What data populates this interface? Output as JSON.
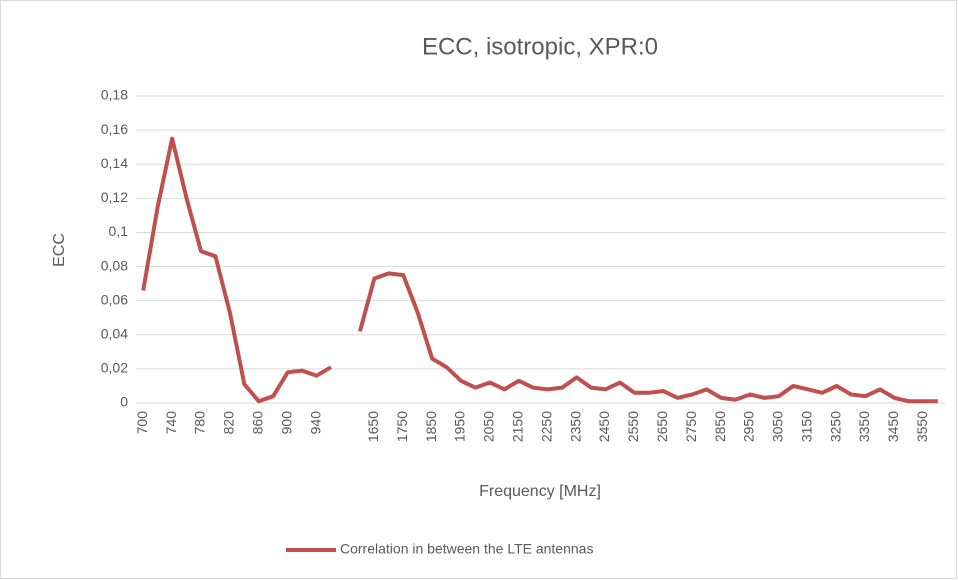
{
  "chart_data": {
    "type": "line",
    "title": "ECC, isotropic, XPR:0",
    "xlabel": "Frequency [MHz]",
    "ylabel": "ECC",
    "categories": [
      700,
      null,
      740,
      null,
      780,
      null,
      820,
      null,
      860,
      null,
      900,
      null,
      940,
      null,
      null,
      null,
      1650,
      null,
      1750,
      null,
      1850,
      null,
      1950,
      null,
      2050,
      null,
      2150,
      null,
      2250,
      null,
      2350,
      null,
      2450,
      null,
      2550,
      null,
      2650,
      null,
      2750,
      null,
      2850,
      null,
      2950,
      null,
      3050,
      null,
      3150,
      null,
      3250,
      null,
      3350,
      null,
      3450,
      null,
      3550,
      null
    ],
    "series": [
      {
        "name": "Correlation in between the LTE antennas",
        "color": "#c0504d",
        "values": [
          0.066,
          0.115,
          0.155,
          0.12,
          0.089,
          0.086,
          0.053,
          0.011,
          0.001,
          0.004,
          0.018,
          0.019,
          0.016,
          0.021,
          null,
          0.042,
          0.073,
          0.076,
          0.075,
          0.053,
          0.026,
          0.021,
          0.013,
          0.009,
          0.012,
          0.008,
          0.013,
          0.009,
          0.008,
          0.009,
          0.015,
          0.009,
          0.008,
          0.012,
          0.006,
          0.006,
          0.007,
          0.003,
          0.005,
          0.008,
          0.003,
          0.002,
          0.005,
          0.003,
          0.004,
          0.01,
          0.008,
          0.006,
          0.01,
          0.005,
          0.004,
          0.008,
          0.003,
          0.001,
          0.001,
          0.001
        ]
      }
    ],
    "ylim": [
      0,
      0.18
    ],
    "yticks": [
      0,
      {
        "value": 0.02,
        "label": "0,02"
      },
      {
        "value": 0.04,
        "label": "0,04"
      },
      {
        "value": 0.06,
        "label": "0,06"
      },
      {
        "value": 0.08,
        "label": "0,08"
      },
      {
        "value": 0.1,
        "label": "0,1"
      },
      {
        "value": 0.12,
        "label": "0,12"
      },
      {
        "value": 0.14,
        "label": "0,14"
      },
      {
        "value": 0.16,
        "label": "0,16"
      },
      {
        "value": 0.18,
        "label": "0,18"
      }
    ],
    "grid": true,
    "legend": "bottom"
  }
}
